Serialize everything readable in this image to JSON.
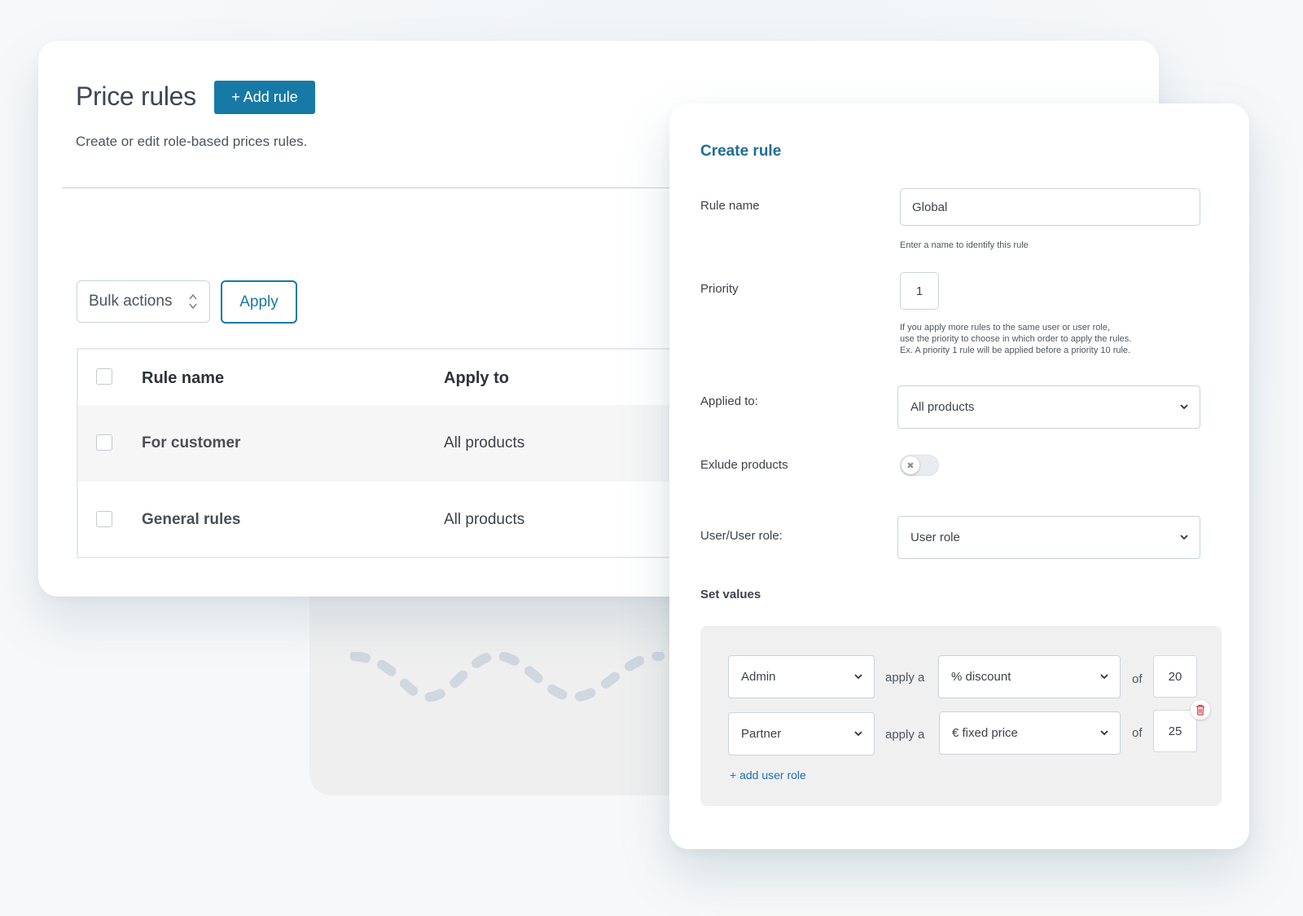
{
  "main": {
    "title": "Price rules",
    "add_rule_label": "+ Add rule",
    "description": "Create or edit role-based prices rules.",
    "bulk_actions": {
      "selected": "Bulk actions"
    },
    "apply_label": "Apply",
    "table": {
      "columns": [
        "Rule name",
        "Apply to"
      ],
      "rows": [
        {
          "name": "For customer",
          "apply_to": "All products"
        },
        {
          "name": "General rules",
          "apply_to": "All products"
        }
      ]
    }
  },
  "panel": {
    "title": "Create rule",
    "rule_name": {
      "label": "Rule name",
      "value": "Global",
      "help": "Enter a name to identify this rule"
    },
    "priority": {
      "label": "Priority",
      "value": "1",
      "help_lines": [
        "If you apply more rules to the same user or user role,",
        "use the priority to choose in which order to apply the rules.",
        "Ex. A priority 1 rule will be applied before a priority 10 rule."
      ]
    },
    "applied_to": {
      "label": "Applied to:",
      "value": "All products"
    },
    "exclude_products": {
      "label": "Exlude products",
      "enabled": false
    },
    "user_role": {
      "label": "User/User role:",
      "value": "User role"
    },
    "set_values": {
      "title": "Set values",
      "rows": [
        {
          "role": "Admin",
          "apply_text": "apply a",
          "type": "% discount",
          "of_text": "of",
          "amount": "20"
        },
        {
          "role": "Partner",
          "apply_text": "apply a",
          "type": "€ fixed price",
          "of_text": "of",
          "amount": "25"
        }
      ],
      "add_link": "+ add user role"
    }
  },
  "colors": {
    "accent": "#1779a6",
    "panel_title": "#1f6c97",
    "link": "#1f6fb0",
    "delete": "#d63638"
  }
}
